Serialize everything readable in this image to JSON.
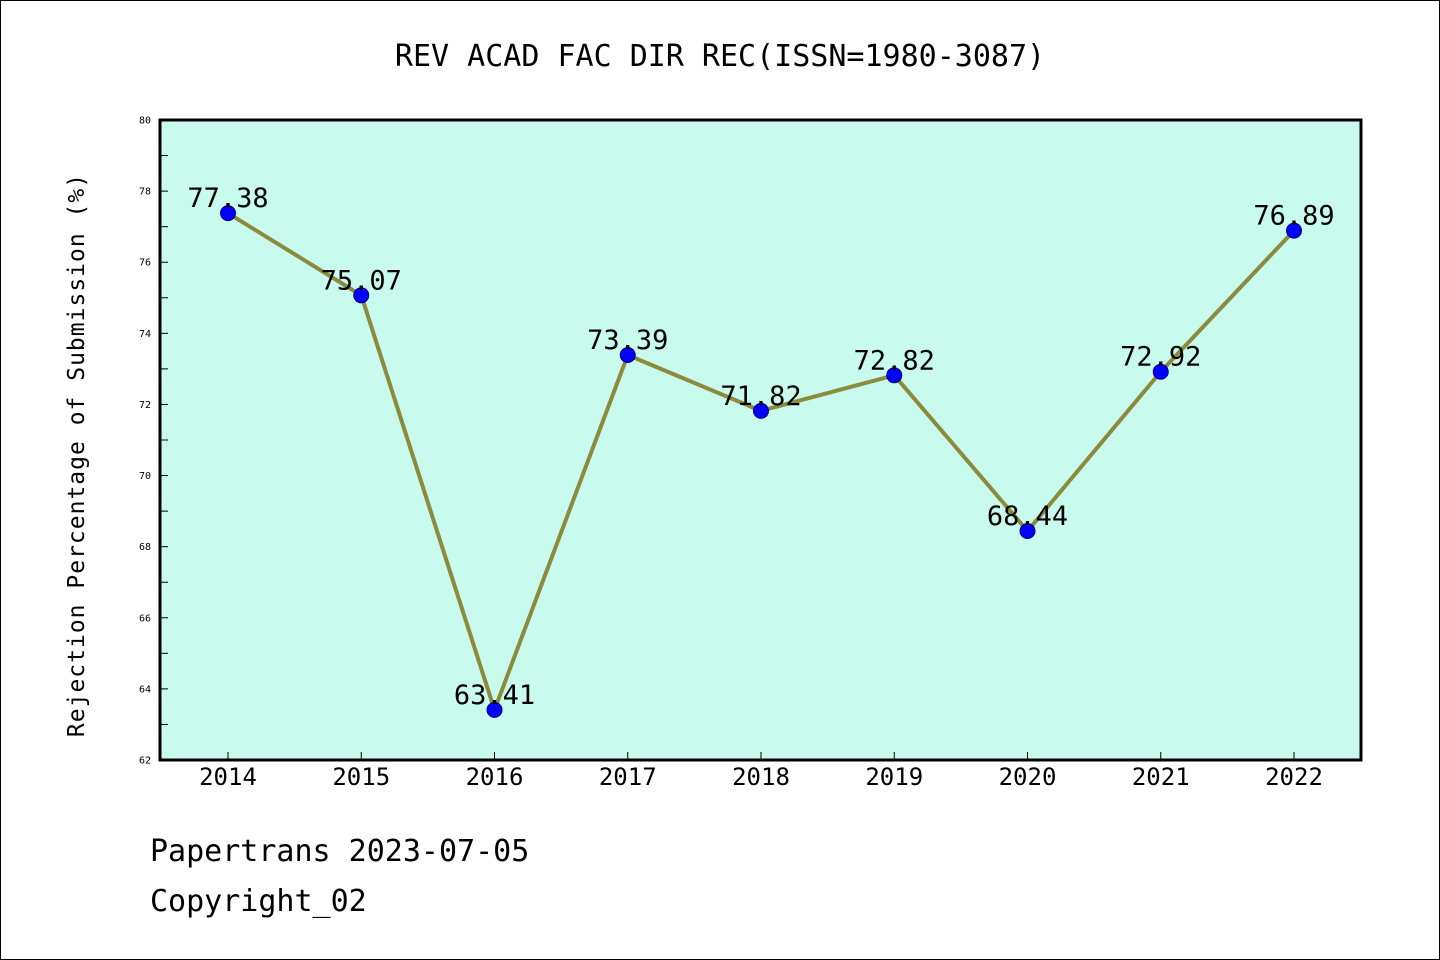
{
  "chart_data": {
    "type": "line",
    "title": "REV ACAD FAC DIR REC(ISSN=1980-3087)",
    "xlabel": "",
    "ylabel": "Rejection Percentage of Submission (%)",
    "categories": [
      "2014",
      "2015",
      "2016",
      "2017",
      "2018",
      "2019",
      "2020",
      "2021",
      "2022"
    ],
    "values": [
      77.38,
      75.07,
      63.41,
      73.39,
      71.82,
      72.82,
      68.44,
      72.92,
      76.89
    ],
    "data_labels": [
      "77.38",
      "75.07",
      "63.41",
      "73.39",
      "71.82",
      "72.82",
      "68.44",
      "72.92",
      "76.89"
    ],
    "ylim": [
      62,
      80
    ],
    "yticks": [
      62,
      64,
      66,
      68,
      70,
      72,
      74,
      76,
      78,
      80
    ],
    "grid": false,
    "colors": {
      "plot_background": "#c8fbee",
      "line": "#8c8a3c",
      "marker": "#0000ff",
      "marker_edge": "#000080"
    }
  },
  "footer": {
    "line1": "Papertrans 2023-07-05",
    "line2": "Copyright_02"
  }
}
